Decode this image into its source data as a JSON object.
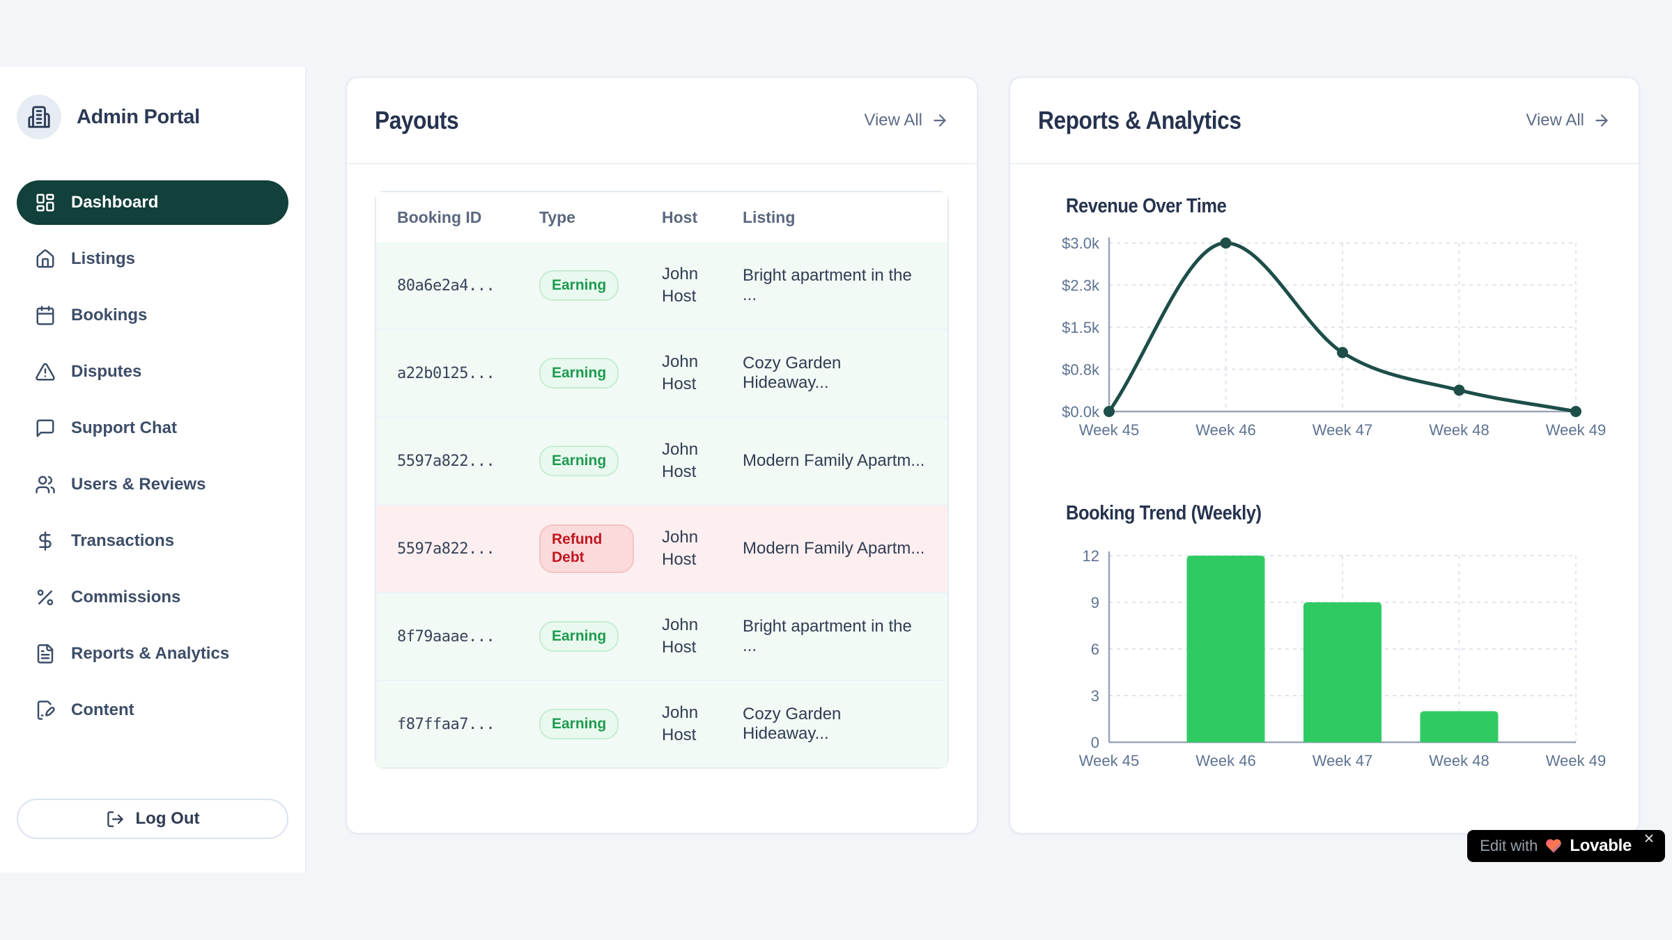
{
  "app": {
    "title": "Admin Portal"
  },
  "sidebar": {
    "items": [
      {
        "label": "Dashboard",
        "icon": "dashboard-icon",
        "active": true
      },
      {
        "label": "Listings",
        "icon": "home-icon",
        "active": false
      },
      {
        "label": "Bookings",
        "icon": "calendar-icon",
        "active": false
      },
      {
        "label": "Disputes",
        "icon": "alert-triangle-icon",
        "active": false
      },
      {
        "label": "Support Chat",
        "icon": "message-square-icon",
        "active": false
      },
      {
        "label": "Users & Reviews",
        "icon": "users-icon",
        "active": false
      },
      {
        "label": "Transactions",
        "icon": "dollar-icon",
        "active": false
      },
      {
        "label": "Commissions",
        "icon": "percent-icon",
        "active": false
      },
      {
        "label": "Reports & Analytics",
        "icon": "file-text-icon",
        "active": false
      },
      {
        "label": "Content",
        "icon": "file-pen-icon",
        "active": false
      }
    ],
    "logout_label": "Log Out"
  },
  "payouts": {
    "title": "Payouts",
    "view_all_label": "View All",
    "table": {
      "columns": [
        "Booking ID",
        "Type",
        "Host",
        "Listing"
      ],
      "rows": [
        {
          "booking_id": "80a6e2a4...",
          "type": "Earning",
          "host": "John Host",
          "listing": "Bright apartment in the ...",
          "variant": "earning"
        },
        {
          "booking_id": "a22b0125...",
          "type": "Earning",
          "host": "John Host",
          "listing": "Cozy Garden Hideaway...",
          "variant": "earning"
        },
        {
          "booking_id": "5597a822...",
          "type": "Earning",
          "host": "John Host",
          "listing": "Modern Family Apartm...",
          "variant": "earning"
        },
        {
          "booking_id": "5597a822...",
          "type": "Refund Debt",
          "host": "John Host",
          "listing": "Modern Family Apartm...",
          "variant": "refund"
        },
        {
          "booking_id": "8f79aaae...",
          "type": "Earning",
          "host": "John Host",
          "listing": "Bright apartment in the ...",
          "variant": "earning"
        },
        {
          "booking_id": "f87ffaa7...",
          "type": "Earning",
          "host": "John Host",
          "listing": "Cozy Garden Hideaway...",
          "variant": "earning"
        }
      ]
    }
  },
  "reports": {
    "title": "Reports & Analytics",
    "view_all_label": "View All"
  },
  "chart_data": [
    {
      "type": "line",
      "title": "Revenue Over Time",
      "x": [
        "Week 45",
        "Week 46",
        "Week 47",
        "Week 48",
        "Week 49"
      ],
      "values": [
        0,
        3000,
        1050,
        380,
        0
      ],
      "y_ticks": [
        0,
        750,
        1500,
        2250,
        3000
      ],
      "y_tick_labels": [
        "$0.0k",
        "$0.8k",
        "$1.5k",
        "$2.3k",
        "$3.0k"
      ],
      "ylim": [
        0,
        3000
      ],
      "xlabel": "",
      "ylabel": "",
      "grid": true,
      "legend": false,
      "line_color": "#1d4e48"
    },
    {
      "type": "bar",
      "title": "Booking Trend (Weekly)",
      "categories": [
        "Week 45",
        "Week 46",
        "Week 47",
        "Week 48",
        "Week 49"
      ],
      "values": [
        0,
        12,
        9,
        2,
        0
      ],
      "y_ticks": [
        0,
        3,
        6,
        9,
        12
      ],
      "y_tick_labels": [
        "0",
        "3",
        "6",
        "9",
        "12"
      ],
      "ylim": [
        0,
        12
      ],
      "xlabel": "",
      "ylabel": "",
      "grid": true,
      "legend": false,
      "bar_color": "#2fcb62"
    }
  ],
  "lovable_badge": {
    "prefix": "Edit with",
    "brand": "Lovable"
  },
  "colors": {
    "sidebar_active": "#12403a",
    "earning_green": "#1d9b4f",
    "refund_red": "#c1161f",
    "line_teal": "#1d4e48",
    "bar_green": "#2fcb62",
    "page_bg": "#f3f5f9"
  }
}
